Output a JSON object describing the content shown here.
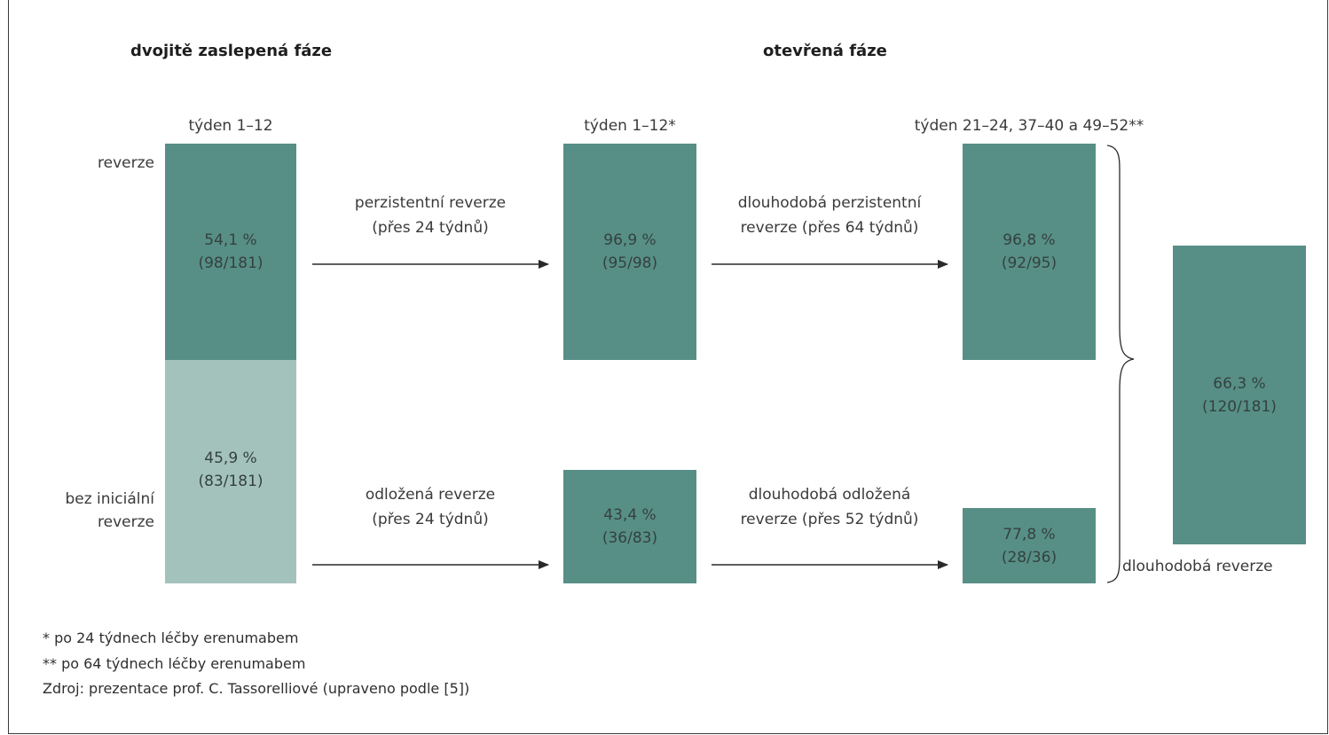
{
  "headers": {
    "double_blind": "dvojitě zaslepená fáze",
    "open_label": "otevřená fáze"
  },
  "column_labels": {
    "col1": "týden 1–12",
    "col2": "týden 1–12*",
    "col3": "týden 21–24, 37–40 a 49–52**"
  },
  "row_labels": {
    "top": "reverze",
    "bottom_line1": "bez iniciální",
    "bottom_line2": "reverze"
  },
  "boxes": {
    "reversal": {
      "pct": "54,1 %",
      "count": "(98/181)"
    },
    "no_initial": {
      "pct": "45,9 %",
      "count": "(83/181)"
    },
    "persistent": {
      "pct": "96,9 %",
      "count": "(95/98)"
    },
    "delayed": {
      "pct": "43,4 %",
      "count": "(36/83)"
    },
    "long_persistent": {
      "pct": "96,8 %",
      "count": "(92/95)"
    },
    "long_delayed": {
      "pct": "77,8 %",
      "count": "(28/36)"
    },
    "long_total": {
      "pct": "66,3 %",
      "count": "(120/181)"
    }
  },
  "arrow_labels": {
    "persistent_l1": "perzistentní reverze",
    "persistent_l2": "(přes 24 týdnů)",
    "delayed_l1": "odložená reverze",
    "delayed_l2": "(přes 24 týdnů)",
    "long_persistent_l1": "dlouhodobá perzistentní",
    "long_persistent_l2": "reverze (přes 64 týdnů)",
    "long_delayed_l1": "dlouhodobá odložená",
    "long_delayed_l2": "reverze (přes 52 týdnů)"
  },
  "long_reversal_label": "dlouhodobá reverze",
  "footnotes": {
    "note1": "* po 24 týdnech léčby erenumabem",
    "note2": "** po 64 týdnech léčby erenumabem",
    "source": "Zdroj: prezentace prof. C. Tassorelliové (upraveno podle [5])"
  },
  "colors": {
    "dark_teal": "#578f87",
    "light_teal": "#a4c2bc"
  }
}
